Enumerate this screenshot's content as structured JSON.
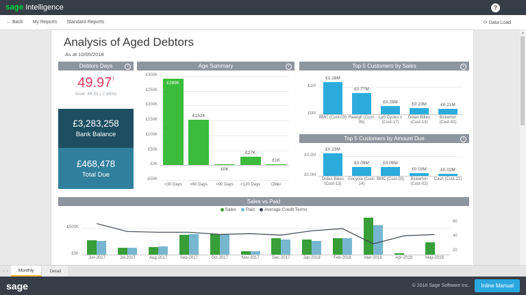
{
  "topbar": {
    "brand_sage": "sage",
    "brand_product": "Intelligence",
    "help_glyph": "?"
  },
  "navbar": {
    "back_label": "Back",
    "my_reports": "My Reports",
    "standard_reports": "Standard Reports",
    "data_load": "Data Load"
  },
  "icons": {
    "back": "←",
    "refresh": "⟳",
    "info": "i",
    "tab_prev": "‹",
    "tab_next": "›",
    "scroll_up": "▲"
  },
  "report": {
    "title": "Analysis of Aged Debtors",
    "subtitle": "As at 10/05/2018"
  },
  "colors": {
    "topbar_bg": "#373d47",
    "sage_green": "#00d639",
    "panel_header": "#8f959d",
    "kpi_red": "#e23a5f",
    "bank_card": "#1d4e62",
    "due_card": "#2f7f9d",
    "age_bar_green": "#3cbc3c",
    "top5_bar_blue": "#2aabdc",
    "sales_green": "#379e38",
    "paid_blue": "#76b7cf",
    "credit_line": "#3d4450",
    "tab_accent": "#f0b43c",
    "button_blue": "#2ba7e0"
  },
  "panels": {
    "debtors_days": {
      "title": "Debtors Days",
      "kpi_value": "49.97",
      "kpi_indicator": "!",
      "goal": "Goal: 46.33 (-7.85%)",
      "cards": [
        {
          "value": "£3,283,258",
          "label": "Bank Balance"
        },
        {
          "value": "£468,478",
          "label": "Total Due"
        }
      ]
    }
  },
  "chart_data": [
    {
      "type": "bar",
      "title": "Age Summary",
      "categories": [
        "<30 Days",
        "<60 Days",
        "<90 Days",
        "<120 Days",
        "Older"
      ],
      "values": [
        289,
        152,
        0,
        27,
        1
      ],
      "labels": [
        "£289K",
        "£152K",
        "£0K",
        "£27K",
        "£1K"
      ],
      "unit": "£K",
      "ylim": [
        -50,
        300
      ],
      "yticks": [
        {
          "v": 300,
          "t": "£300K"
        },
        {
          "v": 250,
          "t": "£250K"
        },
        {
          "v": 200,
          "t": "£200K"
        },
        {
          "v": 150,
          "t": "£150K"
        },
        {
          "v": 100,
          "t": "£100K"
        },
        {
          "v": 50,
          "t": "£50K"
        },
        {
          "v": 0,
          "t": "£0K"
        },
        {
          "v": -50,
          "t": "-£50K"
        }
      ],
      "color": "#3cbc3c"
    },
    {
      "type": "bar",
      "title": "Top 5 Customers by Sales",
      "categories": [
        "BMC (Cust-03)",
        "Raleigh (Cust-05)",
        "Lab Cycles x (Cust-17)",
        "Dolan Bikes (Cust-13)",
        "Bickerton (Cust-02)"
      ],
      "values": [
        1.18,
        0.77,
        0.29,
        0.23,
        0.21
      ],
      "labels": [
        "£1.18M",
        "£0.77M",
        "£0.29M",
        "£0.23M",
        "£0.21M"
      ],
      "unit": "£M",
      "ylim": [
        0,
        1.45
      ],
      "yticks": [
        {
          "v": 1,
          "t": "£1M"
        },
        {
          "v": 0,
          "t": "£0M"
        }
      ],
      "color": "#2aabdc"
    },
    {
      "type": "bar",
      "title": "Top 5 Customers by Amount Due",
      "categories": [
        "Dolan Bikes (Cust-13)",
        "Gocycle (Cust-14)",
        "BMC (Cust-03)",
        "Bickerton (Cust-02)",
        "Cash (Cust-21)"
      ],
      "values": [
        0.23,
        0.09,
        0.09,
        0.03,
        0.02
      ],
      "labels": [
        "£0.23M",
        "£0.09M",
        "£0.09M",
        "£0.03M",
        "£0.02M"
      ],
      "unit": "£M",
      "ylim": [
        0,
        0.29
      ],
      "yticks": [
        {
          "v": 0.2,
          "t": "£0.2M"
        },
        {
          "v": 0,
          "t": "£0.0M"
        }
      ],
      "color": "#2aabdc"
    },
    {
      "type": "bar+line",
      "title": "Sales vs Paid",
      "categories": [
        "Jun-2017",
        "Jul-2017",
        "Aug-2017",
        "Sep-2017",
        "Oct-2017",
        "Nov-2017",
        "Dec-2017",
        "Jan-2018",
        "Feb-2018",
        "Mar-2018",
        "Apr-2018",
        "May-2018"
      ],
      "series": [
        {
          "name": "Sales",
          "color": "#379e38",
          "values": [
            270,
            130,
            145,
            380,
            385,
            60,
            310,
            280,
            305,
            700,
            25,
            230
          ]
        },
        {
          "name": "Paid",
          "color": "#76b7cf",
          "values": [
            265,
            130,
            150,
            390,
            385,
            60,
            280,
            260,
            305,
            550,
            0,
            0
          ]
        }
      ],
      "line": {
        "name": "Average Credit Terms",
        "color": "#3d4450",
        "values": [
          58,
          47,
          46,
          46,
          43,
          44,
          42,
          48,
          51,
          30,
          41,
          43
        ]
      },
      "unit_left": "£K",
      "ylim_left": [
        0,
        750
      ],
      "yticks_left": [
        {
          "v": 500,
          "t": "£500K"
        },
        {
          "v": 0,
          "t": "£0K"
        }
      ],
      "ylim_right": [
        15,
        70
      ],
      "yticks_right": [
        {
          "v": 60,
          "t": "60"
        },
        {
          "v": 40,
          "t": "40"
        },
        {
          "v": 20,
          "t": "20"
        }
      ],
      "legend_position": "top"
    }
  ],
  "tabs": {
    "items": [
      {
        "label": "Monthly",
        "active": true
      },
      {
        "label": "Detail",
        "active": false
      }
    ]
  },
  "footer": {
    "logo": "sage",
    "copyright": "© 2018 Sage Software Inc.",
    "button_label": "Inline Manual"
  }
}
